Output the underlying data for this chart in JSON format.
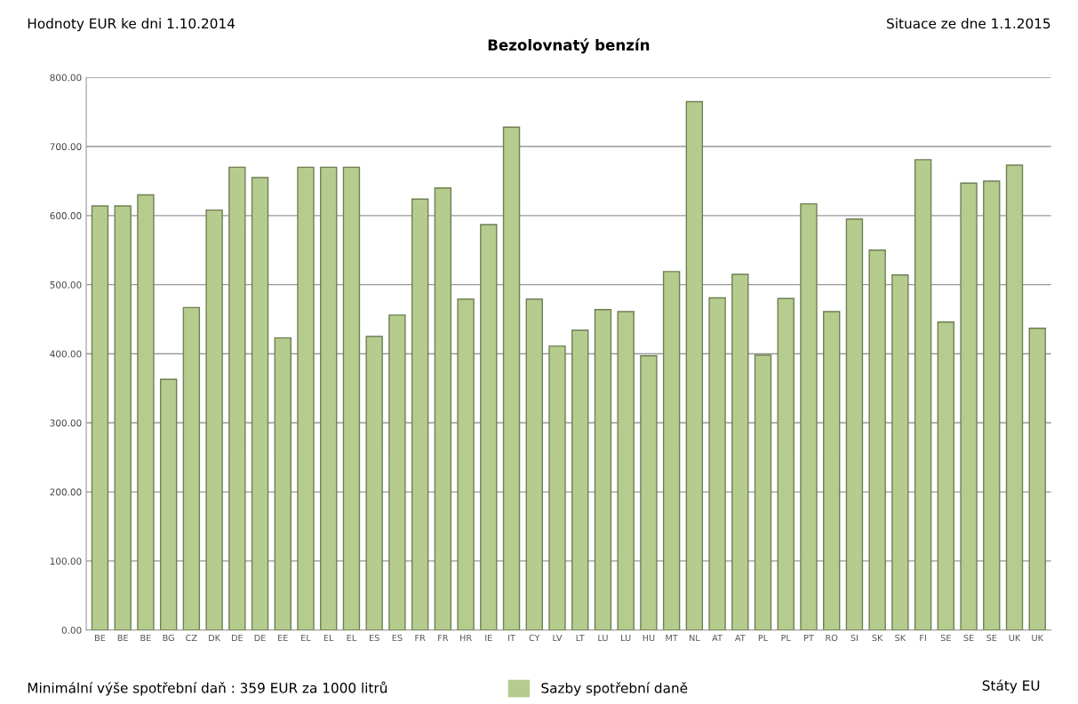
{
  "chart_data": {
    "type": "bar",
    "title": "Bezolovnatý benzín",
    "annotations": [
      "Hodnoty EUR ke dni 1.10.2014",
      "Situace ze dne 1.1.2015",
      "Minimální výše spotřební daň : 359 EUR za 1000 litrů"
    ],
    "xlabel": "Státy EU",
    "categories": [
      "BE",
      "BE",
      "BE",
      "BG",
      "CZ",
      "DK",
      "DE",
      "DE",
      "EE",
      "EL",
      "EL",
      "EL",
      "ES",
      "ES",
      "FR",
      "FR",
      "HR",
      "IE",
      "IT",
      "CY",
      "LV",
      "LT",
      "LU",
      "LU",
      "HU",
      "MT",
      "NL",
      "AT",
      "AT",
      "PL",
      "PL",
      "PT",
      "RO",
      "SI",
      "SK",
      "SK",
      "FI",
      "SE",
      "SE",
      "SE",
      "UK",
      "UK"
    ],
    "series": [
      {
        "name": "Sazby spotřební daně",
        "color": "#b5cc8e",
        "values": [
          614,
          614,
          630,
          363,
          467,
          608,
          670,
          655,
          423,
          670,
          670,
          670,
          425,
          456,
          624,
          640,
          479,
          587,
          728,
          479,
          411,
          434,
          464,
          461,
          397,
          519,
          765,
          481,
          515,
          398,
          480,
          617,
          461,
          595,
          550,
          514,
          681,
          446,
          647,
          650,
          673,
          437
        ]
      }
    ],
    "ylim": [
      0,
      800
    ],
    "yticks": [
      {
        "value": 0,
        "label": "0.00"
      },
      {
        "value": 100,
        "label": "100.00"
      },
      {
        "value": 200,
        "label": "200.00"
      },
      {
        "value": 300,
        "label": "300.00"
      },
      {
        "value": 400,
        "label": "400.00"
      },
      {
        "value": 500,
        "label": "500.00"
      },
      {
        "value": 600,
        "label": "600.00"
      },
      {
        "value": 700,
        "label": "700.00"
      },
      {
        "value": 800,
        "label": "800.00"
      }
    ],
    "grid": "y",
    "legend": "bottom"
  }
}
